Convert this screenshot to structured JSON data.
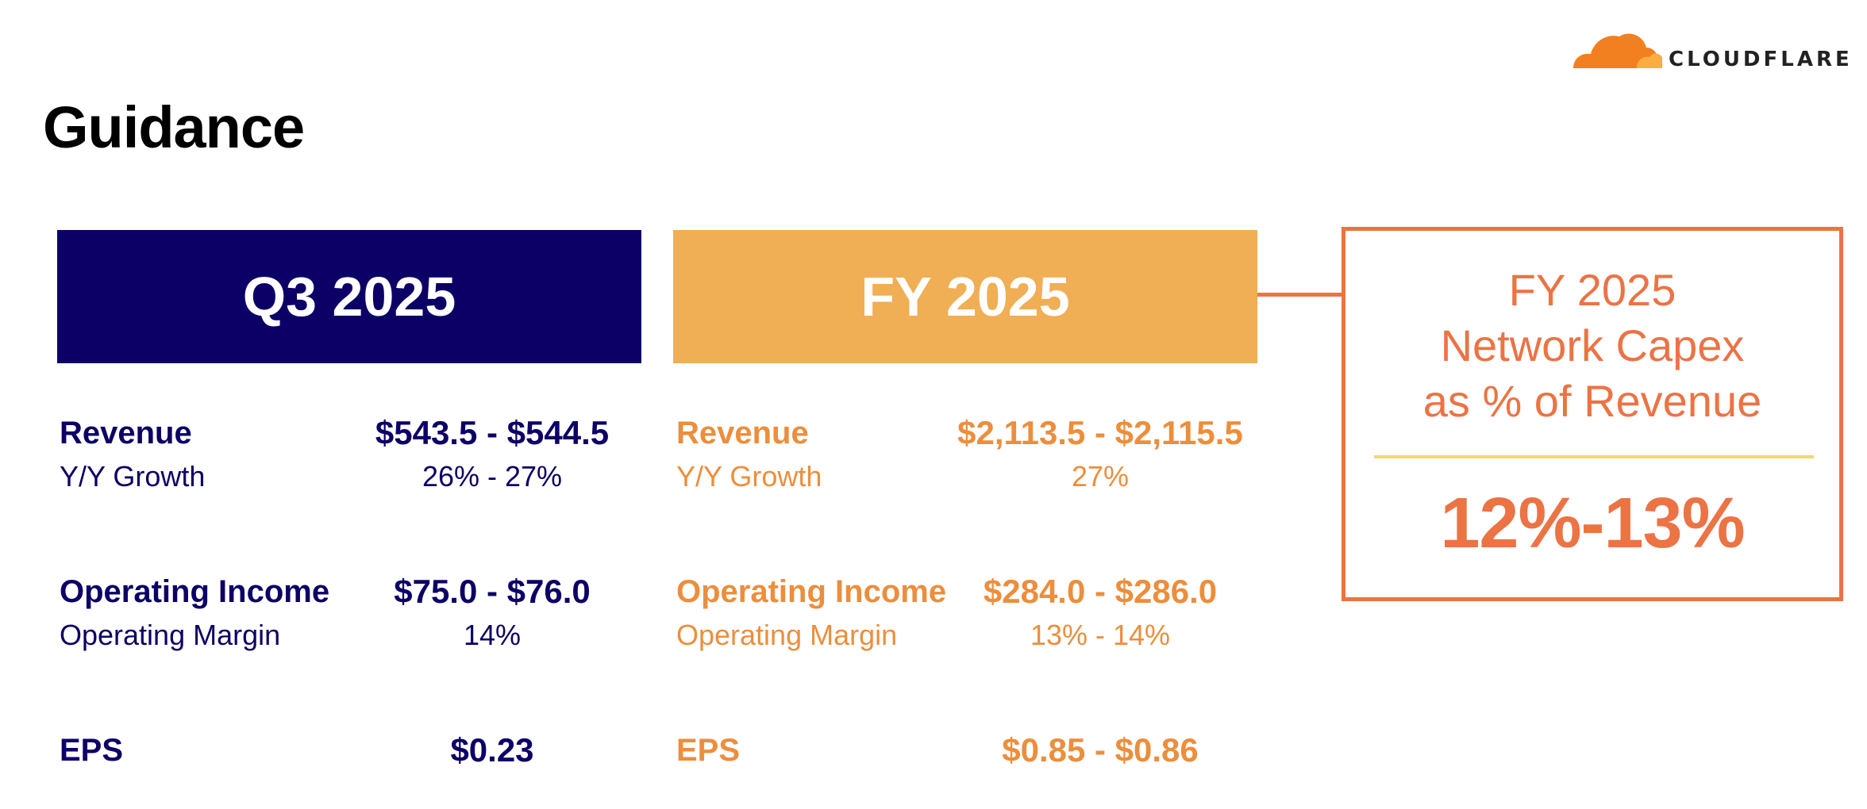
{
  "brand": {
    "logo_text": "CLOUDFLARE",
    "color_orange": "#f38020",
    "color_light": "#faae40"
  },
  "title": "Guidance",
  "columns": [
    {
      "header": "Q3 2025",
      "header_color": "#0c0066",
      "text_color": "#0c0066",
      "revenue": {
        "label": "Revenue",
        "value": "$543.5 - $544.5",
        "sub_label": "Y/Y Growth",
        "sub_value": "26% - 27%"
      },
      "operating_income": {
        "label": "Operating Income",
        "value": "$75.0 - $76.0",
        "sub_label": "Operating Margin",
        "sub_value": "14%"
      },
      "eps": {
        "label": "EPS",
        "value": "$0.23"
      }
    },
    {
      "header": "FY 2025",
      "header_color": "#f0ae55",
      "text_color": "#ec8e3c",
      "revenue": {
        "label": "Revenue",
        "value": "$2,113.5 - $2,115.5",
        "sub_label": "Y/Y Growth",
        "sub_value": "27%"
      },
      "operating_income": {
        "label": "Operating Income",
        "value": "$284.0 - $286.0",
        "sub_label": "Operating Margin",
        "sub_value": "13% - 14%"
      },
      "eps": {
        "label": "EPS",
        "value": "$0.85 - $0.86"
      }
    }
  ],
  "capex": {
    "title_lines": [
      "FY 2025",
      "Network Capex",
      "as % of Revenue"
    ],
    "value": "12%-13%",
    "border_color": "#ec7344",
    "divider_color": "#f5d76e"
  }
}
